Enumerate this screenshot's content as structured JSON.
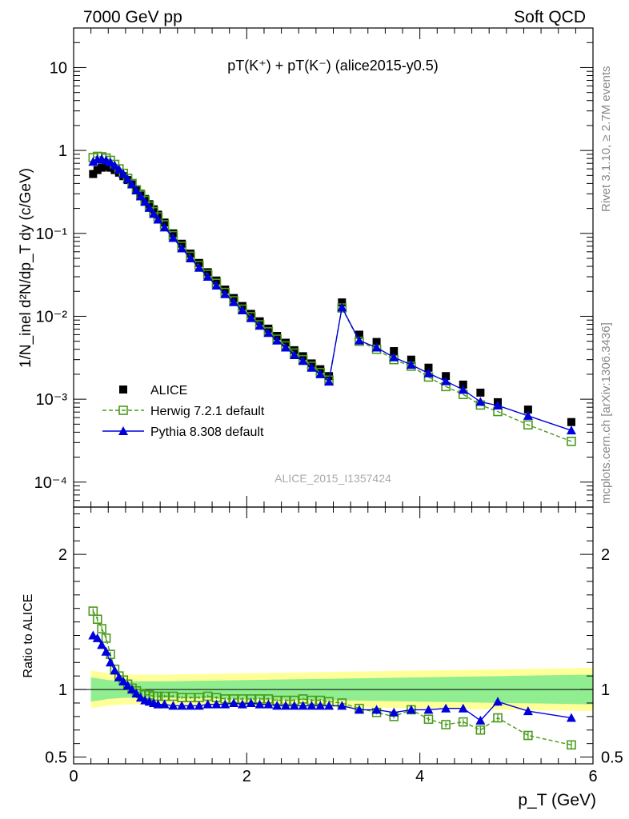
{
  "header": {
    "energy": "7000 GeV pp",
    "category": "Soft QCD"
  },
  "side": {
    "rivet": "Rivet 3.1.10, ≥ 2.7M events",
    "mcplots": "mcplots.cern.ch [arXiv:1306.3436]"
  },
  "chart_data": [
    {
      "type": "scatter",
      "panel": "main",
      "title": "pT(K⁺) + pT(K⁻) (alice2015-y0.5)",
      "watermark": "ALICE_2015_I1357424",
      "ylabel": "1/N_inel d²N/dp_T dy (c/GeV)",
      "yscale": "log",
      "ylim": [
        5e-05,
        30
      ],
      "xlim": [
        0,
        6
      ],
      "yticks": [
        {
          "value": 10,
          "label": "10"
        },
        {
          "value": 1,
          "label": "1"
        },
        {
          "value": 0.1,
          "label": "10⁻¹"
        },
        {
          "value": 0.01,
          "label": "10⁻²"
        },
        {
          "value": 0.001,
          "label": "10⁻³"
        },
        {
          "value": 0.0001,
          "label": "10⁻⁴"
        }
      ],
      "legend_position": "bottom-left",
      "series": [
        {
          "name": "ALICE",
          "color": "#000000",
          "marker": "square",
          "x": [
            0.225,
            0.275,
            0.325,
            0.375,
            0.425,
            0.475,
            0.525,
            0.575,
            0.625,
            0.675,
            0.725,
            0.775,
            0.825,
            0.875,
            0.925,
            0.975,
            1.05,
            1.15,
            1.25,
            1.35,
            1.45,
            1.55,
            1.65,
            1.75,
            1.85,
            1.95,
            2.05,
            2.15,
            2.25,
            2.35,
            2.45,
            2.55,
            2.65,
            2.75,
            2.85,
            2.95,
            3.1,
            3.3,
            3.5,
            3.7,
            3.9,
            4.1,
            4.3,
            4.5,
            4.7,
            4.9,
            5.25,
            5.75
          ],
          "y": [
            0.52,
            0.58,
            0.62,
            0.64,
            0.62,
            0.58,
            0.54,
            0.49,
            0.44,
            0.39,
            0.34,
            0.3,
            0.26,
            0.225,
            0.195,
            0.168,
            0.135,
            0.1,
            0.075,
            0.057,
            0.044,
            0.034,
            0.027,
            0.021,
            0.0166,
            0.0133,
            0.0107,
            0.0087,
            0.0071,
            0.0058,
            0.0048,
            0.0039,
            0.0033,
            0.0027,
            0.0023,
            0.0019,
            0.0147,
            0.006,
            0.0049,
            0.0038,
            0.003,
            0.0024,
            0.0019,
            0.0015,
            0.0012,
            0.00092,
            0.00075,
            0.00053
          ]
        },
        {
          "name": "Herwig 7.2.1 default",
          "color": "#4a9a1a",
          "marker": "open-square",
          "line": "dashed",
          "x": [
            0.225,
            0.275,
            0.325,
            0.375,
            0.425,
            0.475,
            0.525,
            0.575,
            0.625,
            0.675,
            0.725,
            0.775,
            0.825,
            0.875,
            0.925,
            0.975,
            1.05,
            1.15,
            1.25,
            1.35,
            1.45,
            1.55,
            1.65,
            1.75,
            1.85,
            1.95,
            2.05,
            2.15,
            2.25,
            2.35,
            2.45,
            2.55,
            2.65,
            2.75,
            2.85,
            2.95,
            3.1,
            3.3,
            3.5,
            3.7,
            3.9,
            4.1,
            4.3,
            4.5,
            4.7,
            4.9,
            5.25,
            5.75
          ],
          "y": [
            0.82,
            0.85,
            0.84,
            0.81,
            0.76,
            0.68,
            0.6,
            0.53,
            0.46,
            0.4,
            0.335,
            0.29,
            0.25,
            0.213,
            0.183,
            0.158,
            0.127,
            0.094,
            0.07,
            0.053,
            0.041,
            0.032,
            0.025,
            0.0194,
            0.0154,
            0.0122,
            0.0099,
            0.0079,
            0.0065,
            0.0053,
            0.0044,
            0.0036,
            0.003,
            0.0025,
            0.0021,
            0.0017,
            0.0126,
            0.005,
            0.004,
            0.003,
            0.0025,
            0.00185,
            0.00142,
            0.00114,
            0.00085,
            0.00071,
            0.00049,
            0.00031
          ]
        },
        {
          "name": "Pythia 8.308 default",
          "color": "#0000dd",
          "marker": "triangle",
          "line": "solid",
          "x": [
            0.225,
            0.275,
            0.325,
            0.375,
            0.425,
            0.475,
            0.525,
            0.575,
            0.625,
            0.675,
            0.725,
            0.775,
            0.825,
            0.875,
            0.925,
            0.975,
            1.05,
            1.15,
            1.25,
            1.35,
            1.45,
            1.55,
            1.65,
            1.75,
            1.85,
            1.95,
            2.05,
            2.15,
            2.25,
            2.35,
            2.45,
            2.55,
            2.65,
            2.75,
            2.85,
            2.95,
            3.1,
            3.3,
            3.5,
            3.7,
            3.9,
            4.1,
            4.3,
            4.5,
            4.7,
            4.9,
            5.25,
            5.75
          ],
          "y": [
            0.73,
            0.78,
            0.79,
            0.76,
            0.72,
            0.66,
            0.59,
            0.52,
            0.45,
            0.39,
            0.33,
            0.28,
            0.24,
            0.203,
            0.172,
            0.147,
            0.118,
            0.088,
            0.066,
            0.05,
            0.0385,
            0.03,
            0.0235,
            0.0185,
            0.0148,
            0.0118,
            0.0095,
            0.0077,
            0.0063,
            0.0051,
            0.0042,
            0.0034,
            0.0029,
            0.0024,
            0.002,
            0.00163,
            0.0128,
            0.0051,
            0.0042,
            0.0032,
            0.0026,
            0.00205,
            0.00165,
            0.0013,
            0.00093,
            0.00084,
            0.00063,
            0.00042
          ]
        }
      ]
    },
    {
      "type": "scatter",
      "panel": "ratio",
      "xlabel": "p_T (GeV)",
      "ylabel": "Ratio to ALICE",
      "xlim": [
        0,
        6
      ],
      "ylim": [
        0.45,
        2.35
      ],
      "yticks": [
        {
          "value": 2,
          "label": "2"
        },
        {
          "value": 1,
          "label": "1"
        },
        {
          "value": 0.5,
          "label": "0.5"
        }
      ],
      "xticks": [
        {
          "value": 0,
          "label": "0"
        },
        {
          "value": 2,
          "label": "2"
        },
        {
          "value": 4,
          "label": "4"
        },
        {
          "value": 6,
          "label": "6"
        }
      ],
      "bands": {
        "x": [
          0.2,
          0.3,
          0.4,
          0.5,
          0.6,
          0.7,
          0.8,
          1.0,
          1.5,
          2.0,
          2.5,
          3.0,
          3.5,
          4.0,
          4.5,
          5.0,
          5.5,
          6.0
        ],
        "stat_lo": [
          0.91,
          0.92,
          0.93,
          0.935,
          0.94,
          0.94,
          0.94,
          0.94,
          0.935,
          0.93,
          0.925,
          0.92,
          0.915,
          0.91,
          0.905,
          0.9,
          0.895,
          0.89
        ],
        "stat_hi": [
          1.09,
          1.08,
          1.07,
          1.065,
          1.06,
          1.06,
          1.06,
          1.06,
          1.065,
          1.07,
          1.075,
          1.08,
          1.085,
          1.09,
          1.095,
          1.1,
          1.105,
          1.11
        ],
        "syst_lo": [
          0.86,
          0.87,
          0.88,
          0.885,
          0.89,
          0.89,
          0.89,
          0.89,
          0.885,
          0.88,
          0.875,
          0.87,
          0.865,
          0.86,
          0.855,
          0.85,
          0.845,
          0.84
        ],
        "syst_hi": [
          1.14,
          1.13,
          1.12,
          1.115,
          1.11,
          1.11,
          1.11,
          1.11,
          1.115,
          1.12,
          1.125,
          1.13,
          1.135,
          1.14,
          1.145,
          1.15,
          1.155,
          1.16
        ],
        "stat_color": "#90ee90",
        "syst_color": "#ffff99"
      },
      "series": [
        {
          "name": "Herwig 7.2.1 default",
          "color": "#4a9a1a",
          "marker": "open-square",
          "line": "dashed",
          "x": [
            0.225,
            0.275,
            0.325,
            0.375,
            0.425,
            0.475,
            0.525,
            0.575,
            0.625,
            0.675,
            0.725,
            0.775,
            0.825,
            0.875,
            0.925,
            0.975,
            1.05,
            1.15,
            1.25,
            1.35,
            1.45,
            1.55,
            1.65,
            1.75,
            1.85,
            1.95,
            2.05,
            2.15,
            2.25,
            2.35,
            2.45,
            2.55,
            2.65,
            2.75,
            2.85,
            2.95,
            3.1,
            3.3,
            3.5,
            3.7,
            3.9,
            4.1,
            4.3,
            4.5,
            4.7,
            4.9,
            5.25,
            5.75
          ],
          "y": [
            1.58,
            1.52,
            1.45,
            1.38,
            1.26,
            1.15,
            1.1,
            1.07,
            1.04,
            1.01,
            0.99,
            0.97,
            0.96,
            0.96,
            0.95,
            0.95,
            0.95,
            0.95,
            0.94,
            0.94,
            0.94,
            0.95,
            0.94,
            0.93,
            0.93,
            0.93,
            0.93,
            0.93,
            0.93,
            0.92,
            0.92,
            0.92,
            0.93,
            0.92,
            0.92,
            0.91,
            0.9,
            0.86,
            0.83,
            0.8,
            0.85,
            0.78,
            0.74,
            0.76,
            0.7,
            0.79,
            0.66,
            0.59
          ],
          "err": [
            0.02,
            0.02,
            0.02,
            0.02,
            0.02,
            0.02,
            0.02,
            0.01,
            0.01,
            0.01,
            0.01,
            0.01,
            0.01,
            0.01,
            0.01,
            0.01,
            0.01,
            0.01,
            0.01,
            0.01,
            0.01,
            0.01,
            0.01,
            0.01,
            0.01,
            0.01,
            0.01,
            0.01,
            0.01,
            0.01,
            0.01,
            0.01,
            0.01,
            0.01,
            0.01,
            0.01,
            0.01,
            0.01,
            0.015,
            0.015,
            0.02,
            0.02,
            0.02,
            0.02,
            0.03,
            0.03,
            0.03,
            0.03
          ]
        },
        {
          "name": "Pythia 8.308 default",
          "color": "#0000dd",
          "marker": "triangle",
          "line": "solid",
          "x": [
            0.225,
            0.275,
            0.325,
            0.375,
            0.425,
            0.475,
            0.525,
            0.575,
            0.625,
            0.675,
            0.725,
            0.775,
            0.825,
            0.875,
            0.925,
            0.975,
            1.05,
            1.15,
            1.25,
            1.35,
            1.45,
            1.55,
            1.65,
            1.75,
            1.85,
            1.95,
            2.05,
            2.15,
            2.25,
            2.35,
            2.45,
            2.55,
            2.65,
            2.75,
            2.85,
            2.95,
            3.1,
            3.3,
            3.5,
            3.7,
            3.9,
            4.1,
            4.3,
            4.5,
            4.7,
            4.9,
            5.25,
            5.75
          ],
          "y": [
            1.4,
            1.38,
            1.33,
            1.28,
            1.2,
            1.14,
            1.09,
            1.06,
            1.03,
            1.0,
            0.97,
            0.94,
            0.92,
            0.91,
            0.9,
            0.89,
            0.89,
            0.88,
            0.88,
            0.88,
            0.88,
            0.89,
            0.89,
            0.89,
            0.9,
            0.89,
            0.9,
            0.89,
            0.89,
            0.88,
            0.88,
            0.88,
            0.88,
            0.88,
            0.88,
            0.88,
            0.88,
            0.85,
            0.85,
            0.83,
            0.85,
            0.85,
            0.86,
            0.86,
            0.77,
            0.91,
            0.84,
            0.79
          ],
          "err": [
            0.02,
            0.02,
            0.02,
            0.02,
            0.02,
            0.02,
            0.02,
            0.01,
            0.01,
            0.01,
            0.01,
            0.01,
            0.01,
            0.01,
            0.01,
            0.01,
            0.01,
            0.01,
            0.01,
            0.01,
            0.01,
            0.01,
            0.01,
            0.01,
            0.01,
            0.01,
            0.01,
            0.01,
            0.01,
            0.01,
            0.01,
            0.01,
            0.01,
            0.01,
            0.01,
            0.01,
            0.01,
            0.01,
            0.015,
            0.015,
            0.02,
            0.02,
            0.02,
            0.02,
            0.03,
            0.03,
            0.02,
            0.02
          ]
        }
      ]
    }
  ]
}
